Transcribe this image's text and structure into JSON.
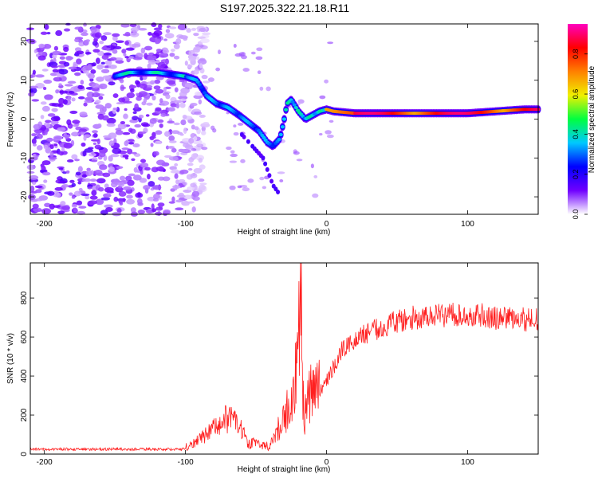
{
  "figure": {
    "title": "S197.2025.322.21.18.R11"
  },
  "chart_data": [
    {
      "type": "heatmap",
      "title": "",
      "xlabel": "Height of straight line (km)",
      "ylabel": "Frequency (Hz)",
      "xlim": [
        -210,
        150
      ],
      "ylim": [
        -24.5,
        24.5
      ],
      "xticks": [
        -200,
        -100,
        0,
        100
      ],
      "yticks": [
        -20,
        -10,
        0,
        10,
        20
      ],
      "colorbar": {
        "label": "Normalized spectral amplitude",
        "range": [
          0,
          0.95
        ],
        "ticks": [
          0.0,
          0.2,
          0.4,
          0.6,
          0.8
        ],
        "tick_labels": [
          "0.0",
          "0.2",
          "0.4",
          "0.6",
          "0.8"
        ],
        "colormap": [
          "#ffffff",
          "#7000ff",
          "#0000ff",
          "#00c8ff",
          "#00ff40",
          "#f0f000",
          "#ff8000",
          "#ff0000",
          "#ff00c0"
        ]
      },
      "tone_track": [
        [
          -150,
          11
        ],
        [
          -140,
          12
        ],
        [
          -130,
          12
        ],
        [
          -120,
          12
        ],
        [
          -110,
          11.5
        ],
        [
          -100,
          11
        ],
        [
          -92,
          10
        ],
        [
          -85,
          6
        ],
        [
          -78,
          4
        ],
        [
          -70,
          3
        ],
        [
          -62,
          1
        ],
        [
          -55,
          -1
        ],
        [
          -48,
          -3
        ],
        [
          -42,
          -6
        ],
        [
          -38,
          -7
        ],
        [
          -33,
          -5
        ],
        [
          -30,
          0
        ],
        [
          -28,
          4
        ],
        [
          -25,
          5
        ],
        [
          -20,
          2
        ],
        [
          -15,
          0
        ],
        [
          -10,
          1
        ],
        [
          -5,
          2
        ],
        [
          0,
          2.5
        ],
        [
          5,
          2
        ],
        [
          20,
          1.5
        ],
        [
          40,
          1.5
        ],
        [
          60,
          1.5
        ],
        [
          80,
          1.5
        ],
        [
          100,
          1.5
        ],
        [
          120,
          2
        ],
        [
          140,
          2.5
        ],
        [
          150,
          2.5
        ]
      ],
      "secondary_track": [
        [
          -60,
          -4
        ],
        [
          -50,
          -8
        ],
        [
          -45,
          -10
        ],
        [
          -38,
          -17
        ],
        [
          -34,
          -19
        ]
      ],
      "noise_region": [
        -210,
        -95
      ]
    },
    {
      "type": "line",
      "title": "",
      "xlabel": "Height of straight line (km)",
      "ylabel": "SNR (10 * v/v)",
      "xlim": [
        -210,
        150
      ],
      "ylim": [
        0,
        980
      ],
      "xticks": [
        -200,
        -100,
        0,
        100
      ],
      "yticks": [
        0,
        200,
        400,
        600,
        800
      ],
      "color": "#ff2020",
      "series": [
        {
          "name": "SNR",
          "x": [
            -210,
            -180,
            -150,
            -120,
            -105,
            -95,
            -88,
            -80,
            -72,
            -65,
            -60,
            -55,
            -50,
            -45,
            -40,
            -35,
            -32,
            -30,
            -27,
            -24,
            -22,
            -20,
            -19,
            -18,
            -17,
            -16,
            -14,
            -12,
            -10,
            -8,
            -5,
            0,
            5,
            10,
            20,
            30,
            40,
            50,
            60,
            70,
            80,
            90,
            100,
            110,
            120,
            130,
            140,
            150
          ],
          "values": [
            20,
            20,
            20,
            25,
            25,
            50,
            80,
            130,
            180,
            170,
            120,
            50,
            60,
            40,
            40,
            130,
            150,
            200,
            230,
            270,
            400,
            500,
            760,
            980,
            400,
            150,
            280,
            300,
            320,
            300,
            330,
            380,
            440,
            520,
            590,
            630,
            650,
            680,
            700,
            700,
            710,
            720,
            720,
            710,
            700,
            690,
            690,
            690
          ]
        }
      ]
    }
  ]
}
